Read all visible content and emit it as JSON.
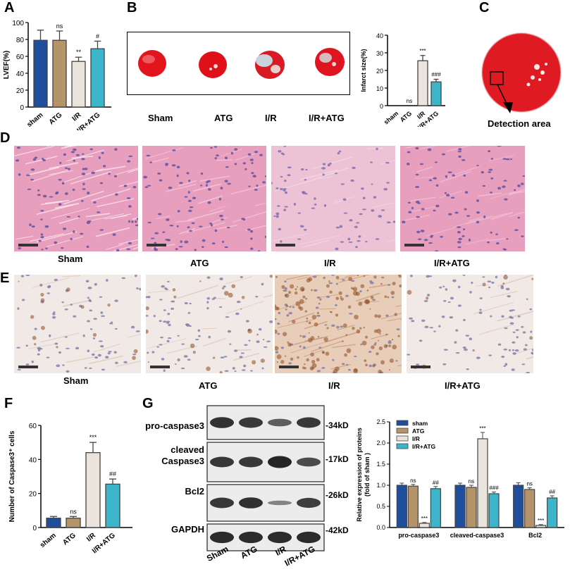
{
  "panels": {
    "A": "A",
    "B": "B",
    "C": "C",
    "D": "D",
    "E": "E",
    "F": "F",
    "G": "G"
  },
  "groups": [
    "Sham",
    "ATG",
    "I/R",
    "I/R+ATG"
  ],
  "detection_label": "Detection area",
  "blot": {
    "rows": [
      {
        "label": "pro-caspase3",
        "kd": "-34kD"
      },
      {
        "label": "cleaved\nCaspase3",
        "kd": "-17kD"
      },
      {
        "label": "Bcl2",
        "kd": "-26kD"
      },
      {
        "label": "GAPDH",
        "kd": "-42kD"
      }
    ],
    "lanes": [
      "Sham",
      "ATG",
      "I/R",
      "I/R+ATG"
    ]
  },
  "colors": {
    "sham": "#1f4e9c",
    "atg": "#b5946a",
    "ir": "#ebe4dc",
    "ir_atg": "#3cb4c9"
  },
  "chart_data": [
    {
      "id": "A",
      "type": "bar",
      "categories": [
        "sham",
        "ATG",
        "I/R",
        "I/R+ATG"
      ],
      "values": [
        79,
        79,
        54,
        69
      ],
      "errors": [
        12,
        11,
        5,
        9
      ],
      "sig": [
        "",
        "ns",
        "**",
        "#"
      ],
      "ylabel": "LVEF(%)",
      "ylim": [
        0,
        100
      ],
      "yticks": [
        0,
        20,
        40,
        60,
        80,
        100
      ]
    },
    {
      "id": "B",
      "type": "bar",
      "categories": [
        "sham",
        "ATG",
        "I/R",
        "I/R+ATG"
      ],
      "values": [
        0,
        0,
        25.5,
        13.5
      ],
      "errors": [
        0,
        0,
        3,
        1.5
      ],
      "sig": [
        "",
        "ns",
        "***",
        "###"
      ],
      "ylabel": "Infarct size(%)",
      "ylim": [
        0,
        40
      ],
      "yticks": [
        0,
        10,
        20,
        30,
        40
      ]
    },
    {
      "id": "F",
      "type": "bar",
      "categories": [
        "sham",
        "ATG",
        "I/R",
        "I/R+ATG"
      ],
      "values": [
        5.5,
        5.5,
        44,
        25.5
      ],
      "errors": [
        1,
        1,
        6,
        3
      ],
      "sig": [
        "",
        "ns",
        "***",
        "##"
      ],
      "ylabel": "Number of Caspase3⁺ cells",
      "ylim": [
        0,
        60
      ],
      "yticks": [
        0,
        20,
        40,
        60
      ]
    },
    {
      "id": "G",
      "type": "bar",
      "categories": [
        "pro-caspase3",
        "cleaved-caspase3",
        "Bcl2"
      ],
      "series": [
        {
          "name": "sham",
          "values": [
            1.0,
            1.0,
            1.0
          ],
          "errors": [
            0.05,
            0.05,
            0.06
          ],
          "sig": [
            "",
            "",
            ""
          ]
        },
        {
          "name": "ATG",
          "values": [
            0.98,
            0.95,
            0.9
          ],
          "errors": [
            0.04,
            0.05,
            0.04
          ],
          "sig": [
            "ns",
            "ns",
            "ns"
          ]
        },
        {
          "name": "I/R",
          "values": [
            0.1,
            2.1,
            0.05
          ],
          "errors": [
            0.02,
            0.15,
            0.02
          ],
          "sig": [
            "***",
            "***",
            "***"
          ]
        },
        {
          "name": "I/R+ATG",
          "values": [
            0.92,
            0.8,
            0.7
          ],
          "errors": [
            0.05,
            0.04,
            0.05
          ],
          "sig": [
            "##",
            "###",
            "##"
          ]
        }
      ],
      "ylabel": "Relative expression of proteins\n(fold of sham )",
      "ylim": [
        0,
        2.5
      ],
      "yticks": [
        0.0,
        0.5,
        1.0,
        1.5,
        2.0,
        2.5
      ]
    }
  ]
}
